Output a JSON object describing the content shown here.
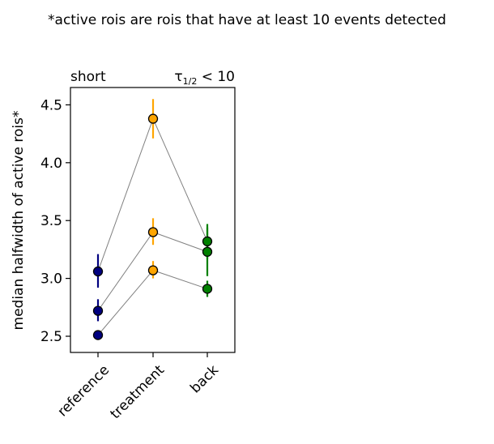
{
  "figure": {
    "suptitle": "*active rois are rois that have at least 10 events detected"
  },
  "chart_data": {
    "type": "scatter",
    "title_left": "short",
    "title_right": "τ1/2 < 10",
    "title_right_parts": {
      "symbol": "τ",
      "subscript": "1/2",
      "rest": " < 10"
    },
    "xlabel": "",
    "ylabel": "median halfwidth of active rois*",
    "categories": [
      "reference",
      "treatment",
      "back"
    ],
    "yticks": [
      "2.5",
      "3.0",
      "3.5",
      "4.0",
      "4.5"
    ],
    "ytick_values": [
      2.5,
      3.0,
      3.5,
      4.0,
      4.5
    ],
    "ylim": [
      2.36,
      4.65
    ],
    "grid": false,
    "legend": "none",
    "colors": {
      "reference": "#000080",
      "treatment": "#FFA500",
      "back": "#008000",
      "connector": "#808080",
      "marker_edge": "#000000"
    },
    "series": [
      {
        "values": [
          3.06,
          4.38,
          3.32
        ],
        "err_low": [
          2.92,
          4.21,
          3.17
        ],
        "err_high": [
          3.21,
          4.55,
          3.47
        ]
      },
      {
        "values": [
          2.72,
          3.4,
          3.23
        ],
        "err_low": [
          2.63,
          3.29,
          3.02
        ],
        "err_high": [
          2.82,
          3.52,
          3.44
        ]
      },
      {
        "values": [
          2.51,
          3.07,
          2.91
        ],
        "err_low": [
          2.48,
          3.0,
          2.84
        ],
        "err_high": [
          2.54,
          3.15,
          2.98
        ]
      }
    ]
  }
}
